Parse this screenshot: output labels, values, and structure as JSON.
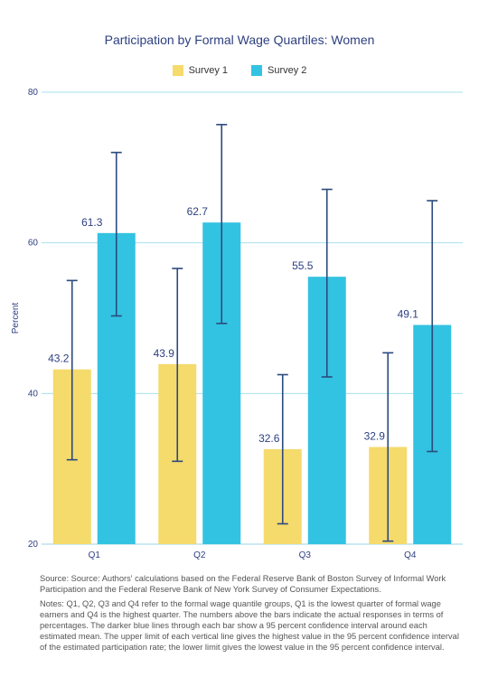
{
  "chart_data": {
    "type": "bar",
    "title": "Participation by Formal Wage Quartiles: Women",
    "ylabel": "Percent",
    "xlabel": "",
    "ylim": [
      20,
      80
    ],
    "yticks": [
      20,
      40,
      60,
      80
    ],
    "categories": [
      "Q1",
      "Q2",
      "Q3",
      "Q4"
    ],
    "grid": true,
    "legend_position": "top",
    "series": [
      {
        "name": "Survey 1",
        "color": "#f5da6c",
        "values": [
          43.2,
          43.9,
          32.6,
          32.9
        ],
        "ci_low": [
          31.2,
          31.0,
          22.7,
          20.4
        ],
        "ci_high": [
          55.0,
          56.6,
          42.5,
          45.4
        ]
      },
      {
        "name": "Survey 2",
        "color": "#33c3e2",
        "values": [
          61.3,
          62.7,
          55.5,
          49.1
        ],
        "ci_low": [
          50.3,
          49.3,
          42.2,
          32.3
        ],
        "ci_high": [
          72.0,
          75.7,
          67.1,
          65.6
        ]
      }
    ],
    "errorbar_color": "#2b4a7e"
  },
  "notes": {
    "source": "Source: Source: Authors' calculations based on the Federal Reserve Bank of Boston Survey of Informal Work Participation and the Federal Reserve Bank of New York Survey of Consumer Expectations.",
    "notes": "Notes: Q1, Q2, Q3 and Q4 refer to the formal wage quantile groups, Q1 is the lowest quarter of formal wage earners and Q4 is the highest quarter. The numbers above the bars indicate the actual responses in terms of percentages. The darker blue lines through each bar show a 95 percent confidence interval around each estimated mean. The upper limit of each vertical line gives the highest value in the 95 percent confidence interval of the estimated participation rate; the lower limit gives the lowest value in the 95 percent confidence interval."
  }
}
